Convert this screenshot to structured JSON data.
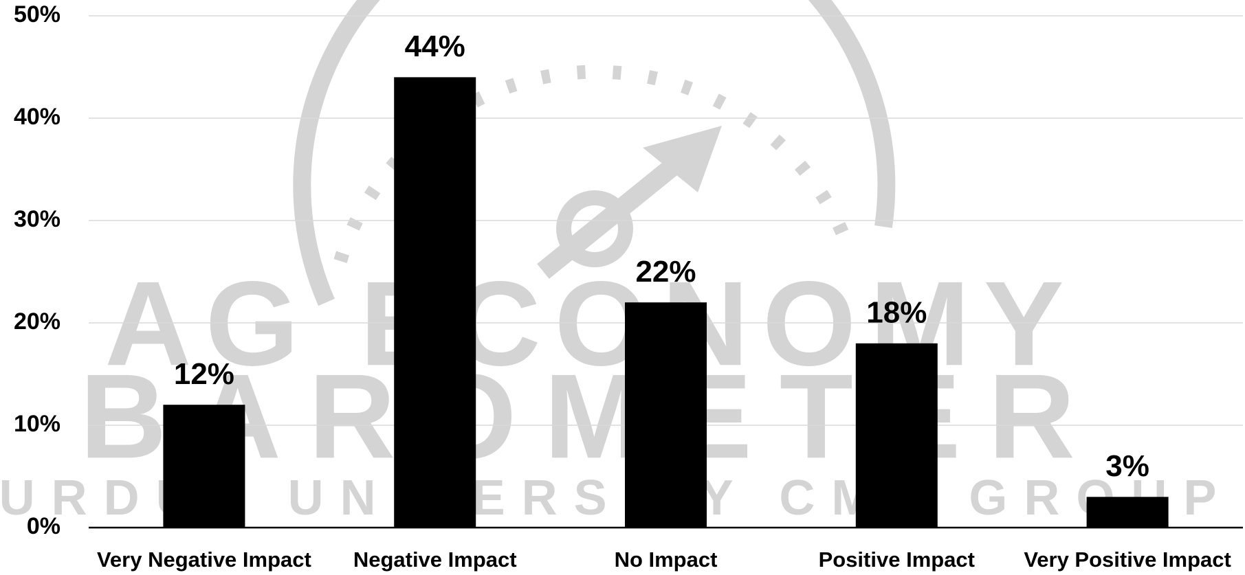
{
  "chart_data": {
    "type": "bar",
    "categories": [
      "Very Negative Impact",
      "Negative Impact",
      "No Impact",
      "Positive Impact",
      "Very Positive Impact"
    ],
    "values": [
      12,
      44,
      22,
      18,
      3
    ],
    "value_labels": [
      "12%",
      "44%",
      "22%",
      "18%",
      "3%"
    ],
    "color": "#000000",
    "ylim": [
      0,
      50
    ],
    "yticks": [
      {
        "value": 0,
        "label": "0%"
      },
      {
        "value": 10,
        "label": "10%"
      },
      {
        "value": 20,
        "label": "20%"
      },
      {
        "value": 30,
        "label": "30%"
      },
      {
        "value": 40,
        "label": "40%"
      },
      {
        "value": 50,
        "label": "50%"
      }
    ],
    "grid": true,
    "watermark": [
      "AG ECONOMY",
      "BAROMETER",
      "PURDUE UNIVERSITY   CME GROUP"
    ]
  }
}
